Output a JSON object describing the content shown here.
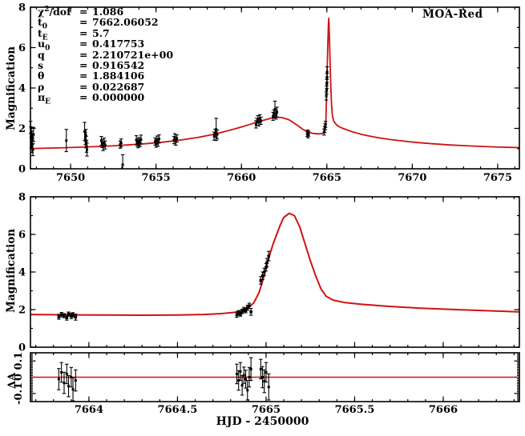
{
  "header": {
    "dataset_label": "MOA-Red"
  },
  "parameters": {
    "rows": [
      {
        "base": "χ",
        "sup": "2",
        "suffix": "/dof",
        "value": "1.086"
      },
      {
        "base": "t",
        "sub": "0",
        "value": "7662.06052"
      },
      {
        "base": "t",
        "sub": "E",
        "value": "5.7"
      },
      {
        "base": "u",
        "sub": "0",
        "value": "0.417753"
      },
      {
        "base": "q",
        "value": "2.210721e+00"
      },
      {
        "base": "s",
        "value": "0.916542"
      },
      {
        "base": "θ",
        "value": "1.884106"
      },
      {
        "base": "ρ",
        "value": "0.022687"
      },
      {
        "base": "π",
        "sub": "E",
        "value": "0.000000"
      }
    ]
  },
  "chart_data": {
    "type": "line",
    "colors": {
      "model": "#cf1212",
      "points": "#000000"
    },
    "panels": [
      {
        "id": "top",
        "ylabel": "Magnification",
        "xlim": [
          7647.65,
          7676.27
        ],
        "ylim": [
          0,
          8
        ],
        "x_major_ticks": [
          7650,
          7655,
          7660,
          7665,
          7670,
          7675
        ],
        "x_tick_labels": [
          "7650",
          "7655",
          "7660",
          "7665",
          "7670",
          "7675"
        ],
        "x_minor_step": 1,
        "y_major_ticks": [
          0,
          2,
          4,
          6,
          8
        ],
        "y_tick_labels": [
          "0",
          "2",
          "4",
          "6",
          "8"
        ],
        "y_minor_step": 1,
        "show_x_labels": true,
        "marker_size": 3,
        "curve_width": 1.8,
        "curve": [
          [
            7647.65,
            1.0
          ],
          [
            7648.5,
            1.02
          ],
          [
            7649.5,
            1.04
          ],
          [
            7650.5,
            1.07
          ],
          [
            7651.5,
            1.1
          ],
          [
            7652.5,
            1.14
          ],
          [
            7653.5,
            1.19
          ],
          [
            7654.5,
            1.25
          ],
          [
            7655.5,
            1.33
          ],
          [
            7656.5,
            1.43
          ],
          [
            7657.5,
            1.56
          ],
          [
            7658.5,
            1.73
          ],
          [
            7659.5,
            1.95
          ],
          [
            7660.0,
            2.07
          ],
          [
            7660.5,
            2.2
          ],
          [
            7661.0,
            2.33
          ],
          [
            7661.5,
            2.45
          ],
          [
            7661.8,
            2.52
          ],
          [
            7662.06,
            2.56
          ],
          [
            7662.4,
            2.53
          ],
          [
            7662.8,
            2.42
          ],
          [
            7663.2,
            2.2
          ],
          [
            7663.6,
            1.95
          ],
          [
            7663.9,
            1.82
          ],
          [
            7664.2,
            1.75
          ],
          [
            7664.5,
            1.73
          ],
          [
            7664.7,
            1.74
          ],
          [
            7664.82,
            1.8
          ],
          [
            7664.9,
            2.0
          ],
          [
            7664.94,
            2.3
          ],
          [
            7664.97,
            3.2
          ],
          [
            7665.0,
            4.2
          ],
          [
            7665.03,
            5.3
          ],
          [
            7665.06,
            6.3
          ],
          [
            7665.09,
            7.1
          ],
          [
            7665.11,
            7.45
          ],
          [
            7665.13,
            7.15
          ],
          [
            7665.16,
            6.2
          ],
          [
            7665.2,
            4.9
          ],
          [
            7665.24,
            3.9
          ],
          [
            7665.28,
            3.1
          ],
          [
            7665.33,
            2.6
          ],
          [
            7665.4,
            2.37
          ],
          [
            7665.5,
            2.24
          ],
          [
            7665.65,
            2.12
          ],
          [
            7665.85,
            2.03
          ],
          [
            7666.1,
            1.95
          ],
          [
            7666.5,
            1.83
          ],
          [
            7667.0,
            1.71
          ],
          [
            7667.5,
            1.62
          ],
          [
            7668.0,
            1.54
          ],
          [
            7668.7,
            1.45
          ],
          [
            7669.5,
            1.37
          ],
          [
            7670.3,
            1.3
          ],
          [
            7671.2,
            1.24
          ],
          [
            7672.2,
            1.18
          ],
          [
            7673.2,
            1.14
          ],
          [
            7674.3,
            1.1
          ],
          [
            7675.3,
            1.07
          ],
          [
            7676.27,
            1.05
          ]
        ],
        "points": [
          [
            7647.66,
            2.05,
            0.3
          ],
          [
            7647.7,
            1.82,
            0.25
          ],
          [
            7647.73,
            1.62,
            0.25
          ],
          [
            7647.76,
            1.45,
            0.25
          ],
          [
            7647.7,
            1.28,
            0.25
          ],
          [
            7647.74,
            1.1,
            0.3
          ],
          [
            7647.79,
            0.95,
            0.3
          ],
          [
            7647.83,
            1.7,
            0.35
          ],
          [
            7649.75,
            1.4,
            0.55
          ],
          [
            7650.82,
            1.85,
            0.45
          ],
          [
            7650.86,
            1.5,
            0.3
          ],
          [
            7650.9,
            1.32,
            0.28
          ],
          [
            7650.93,
            1.12,
            0.3
          ],
          [
            7650.96,
            0.95,
            0.32
          ],
          [
            7650.9,
            1.65,
            0.3
          ],
          [
            7651.8,
            1.38,
            0.22
          ],
          [
            7651.85,
            1.25,
            0.2
          ],
          [
            7651.9,
            1.12,
            0.22
          ],
          [
            7651.96,
            1.3,
            0.22
          ],
          [
            7652.02,
            1.18,
            0.2
          ],
          [
            7652.9,
            1.2,
            0.18
          ],
          [
            7652.96,
            1.28,
            0.2
          ],
          [
            7653.05,
            0.2,
            0.5
          ],
          [
            7653.85,
            1.42,
            0.22
          ],
          [
            7653.9,
            1.3,
            0.18
          ],
          [
            7653.95,
            1.22,
            0.18
          ],
          [
            7654.0,
            1.35,
            0.2
          ],
          [
            7654.06,
            1.28,
            0.18
          ],
          [
            7654.12,
            1.45,
            0.22
          ],
          [
            7654.95,
            1.35,
            0.18
          ],
          [
            7655.0,
            1.25,
            0.18
          ],
          [
            7655.06,
            1.42,
            0.2
          ],
          [
            7655.12,
            1.3,
            0.18
          ],
          [
            7655.18,
            1.48,
            0.2
          ],
          [
            7656.05,
            1.42,
            0.18
          ],
          [
            7656.1,
            1.56,
            0.18
          ],
          [
            7656.16,
            1.35,
            0.18
          ],
          [
            7656.22,
            1.5,
            0.18
          ],
          [
            7658.4,
            1.62,
            0.2
          ],
          [
            7658.46,
            1.76,
            0.2
          ],
          [
            7658.52,
            1.95,
            0.55
          ],
          [
            7658.58,
            1.7,
            0.22
          ],
          [
            7660.85,
            2.2,
            0.18
          ],
          [
            7660.9,
            2.32,
            0.18
          ],
          [
            7660.96,
            2.45,
            0.18
          ],
          [
            7661.02,
            2.3,
            0.18
          ],
          [
            7661.08,
            2.5,
            0.18
          ],
          [
            7661.14,
            2.38,
            0.18
          ],
          [
            7661.85,
            2.6,
            0.2
          ],
          [
            7661.9,
            2.72,
            0.2
          ],
          [
            7661.96,
            2.95,
            0.4
          ],
          [
            7662.02,
            2.68,
            0.22
          ],
          [
            7662.08,
            2.8,
            0.25
          ],
          [
            7663.85,
            1.72,
            0.12
          ],
          [
            7663.88,
            1.8,
            0.12
          ],
          [
            7663.9,
            1.65,
            0.12
          ],
          [
            7663.93,
            1.74,
            0.12
          ],
          [
            7664.84,
            1.82,
            0.15
          ],
          [
            7664.87,
            1.95,
            0.15
          ],
          [
            7664.9,
            2.08,
            0.15
          ],
          [
            7664.92,
            2.2,
            0.15
          ],
          [
            7664.97,
            3.6,
            0.2
          ],
          [
            7664.985,
            3.9,
            0.2
          ],
          [
            7665.0,
            4.2,
            0.22
          ],
          [
            7665.005,
            4.5,
            0.22
          ],
          [
            7665.015,
            4.8,
            0.25
          ]
        ]
      },
      {
        "id": "middle",
        "ylabel": "Magnification",
        "xlim": [
          7663.67,
          7666.43
        ],
        "ylim": [
          0,
          8
        ],
        "x_major_ticks": [
          7664,
          7664.5,
          7665,
          7665.5,
          7666
        ],
        "x_tick_labels": [
          "7664",
          "7664.5",
          "7665",
          "7665.5",
          "7666"
        ],
        "x_minor_step": 0.1,
        "y_major_ticks": [
          0,
          2,
          4,
          6,
          8
        ],
        "y_tick_labels": [
          "0",
          "2",
          "4",
          "6",
          "8"
        ],
        "y_minor_step": 1,
        "show_x_labels": false,
        "marker_size": 3.6,
        "curve_width": 2,
        "curve": [
          [
            7663.67,
            1.74
          ],
          [
            7663.9,
            1.72
          ],
          [
            7664.1,
            1.71
          ],
          [
            7664.3,
            1.7
          ],
          [
            7664.5,
            1.71
          ],
          [
            7664.65,
            1.74
          ],
          [
            7664.75,
            1.79
          ],
          [
            7664.82,
            1.85
          ],
          [
            7664.86,
            1.95
          ],
          [
            7664.9,
            2.1
          ],
          [
            7664.93,
            2.35
          ],
          [
            7664.96,
            2.9
          ],
          [
            7664.98,
            3.5
          ],
          [
            7665.0,
            4.2
          ],
          [
            7665.02,
            4.9
          ],
          [
            7665.04,
            5.5
          ],
          [
            7665.06,
            6.0
          ],
          [
            7665.08,
            6.5
          ],
          [
            7665.1,
            6.9
          ],
          [
            7665.13,
            7.12
          ],
          [
            7665.16,
            7.0
          ],
          [
            7665.19,
            6.4
          ],
          [
            7665.22,
            5.5
          ],
          [
            7665.25,
            4.6
          ],
          [
            7665.28,
            3.8
          ],
          [
            7665.31,
            3.1
          ],
          [
            7665.34,
            2.7
          ],
          [
            7665.38,
            2.5
          ],
          [
            7665.44,
            2.38
          ],
          [
            7665.54,
            2.28
          ],
          [
            7665.68,
            2.18
          ],
          [
            7665.86,
            2.08
          ],
          [
            7666.1,
            1.99
          ],
          [
            7666.43,
            1.88
          ]
        ],
        "points": [
          [
            7663.83,
            1.62,
            0.13
          ],
          [
            7663.845,
            1.73,
            0.12
          ],
          [
            7663.86,
            1.68,
            0.11
          ],
          [
            7663.875,
            1.57,
            0.13
          ],
          [
            7663.885,
            1.76,
            0.11
          ],
          [
            7663.9,
            1.66,
            0.14
          ],
          [
            7663.91,
            1.72,
            0.12
          ],
          [
            7663.925,
            1.6,
            0.16
          ],
          [
            7664.835,
            1.72,
            0.13
          ],
          [
            7664.845,
            1.83,
            0.12
          ],
          [
            7664.855,
            1.76,
            0.11
          ],
          [
            7664.865,
            1.9,
            0.12
          ],
          [
            7664.875,
            2.0,
            0.12
          ],
          [
            7664.885,
            1.95,
            0.12
          ],
          [
            7664.895,
            2.1,
            0.13
          ],
          [
            7664.905,
            2.2,
            0.14
          ],
          [
            7664.915,
            1.88,
            0.18
          ],
          [
            7664.97,
            3.55,
            0.2
          ],
          [
            7664.98,
            3.8,
            0.2
          ],
          [
            7664.99,
            4.0,
            0.2
          ],
          [
            7665.0,
            4.25,
            0.2
          ],
          [
            7665.005,
            4.5,
            0.22
          ],
          [
            7665.015,
            4.85,
            0.25
          ]
        ]
      },
      {
        "id": "residual",
        "ylabel": "ΔA",
        "xlabel": "HJD - 2450000",
        "xlim": [
          7663.67,
          7666.43
        ],
        "ylim": [
          -0.15,
          0.15
        ],
        "x_major_ticks": [
          7664,
          7664.5,
          7665,
          7665.5,
          7666
        ],
        "x_tick_labels": [
          "7664",
          "7664.5",
          "7665",
          "7665.5",
          "7666"
        ],
        "x_minor_step": 0.1,
        "y_major_ticks": [
          -0.1,
          0,
          0.1
        ],
        "y_tick_labels": [
          "-0.1",
          "0",
          "0.1"
        ],
        "y_minor_step": 0.01,
        "y_labels_rotated": true,
        "show_x_labels": true,
        "zero_line": 0,
        "marker_size": 3,
        "points": [
          [
            7663.83,
            -0.012,
            0.065
          ],
          [
            7663.845,
            0.03,
            0.06
          ],
          [
            7663.86,
            -0.035,
            0.065
          ],
          [
            7663.875,
            0.02,
            0.06
          ],
          [
            7663.885,
            -0.055,
            0.065
          ],
          [
            7663.9,
            0.0,
            0.06
          ],
          [
            7663.91,
            -0.075,
            0.07
          ],
          [
            7663.925,
            -0.02,
            0.065
          ],
          [
            7664.835,
            0.02,
            0.06
          ],
          [
            7664.845,
            -0.02,
            0.06
          ],
          [
            7664.855,
            0.035,
            0.055
          ],
          [
            7664.865,
            -0.05,
            0.06
          ],
          [
            7664.875,
            0.012,
            0.05
          ],
          [
            7664.885,
            -0.012,
            0.055
          ],
          [
            7664.895,
            -0.08,
            0.06
          ],
          [
            7664.905,
            0.0,
            0.06
          ],
          [
            7664.915,
            0.05,
            0.07
          ],
          [
            7664.97,
            0.05,
            0.06
          ],
          [
            7664.98,
            0.0,
            0.065
          ],
          [
            7664.99,
            -0.025,
            0.07
          ],
          [
            7665.0,
            0.03,
            0.06
          ],
          [
            7665.015,
            -0.06,
            0.08
          ]
        ]
      }
    ]
  }
}
